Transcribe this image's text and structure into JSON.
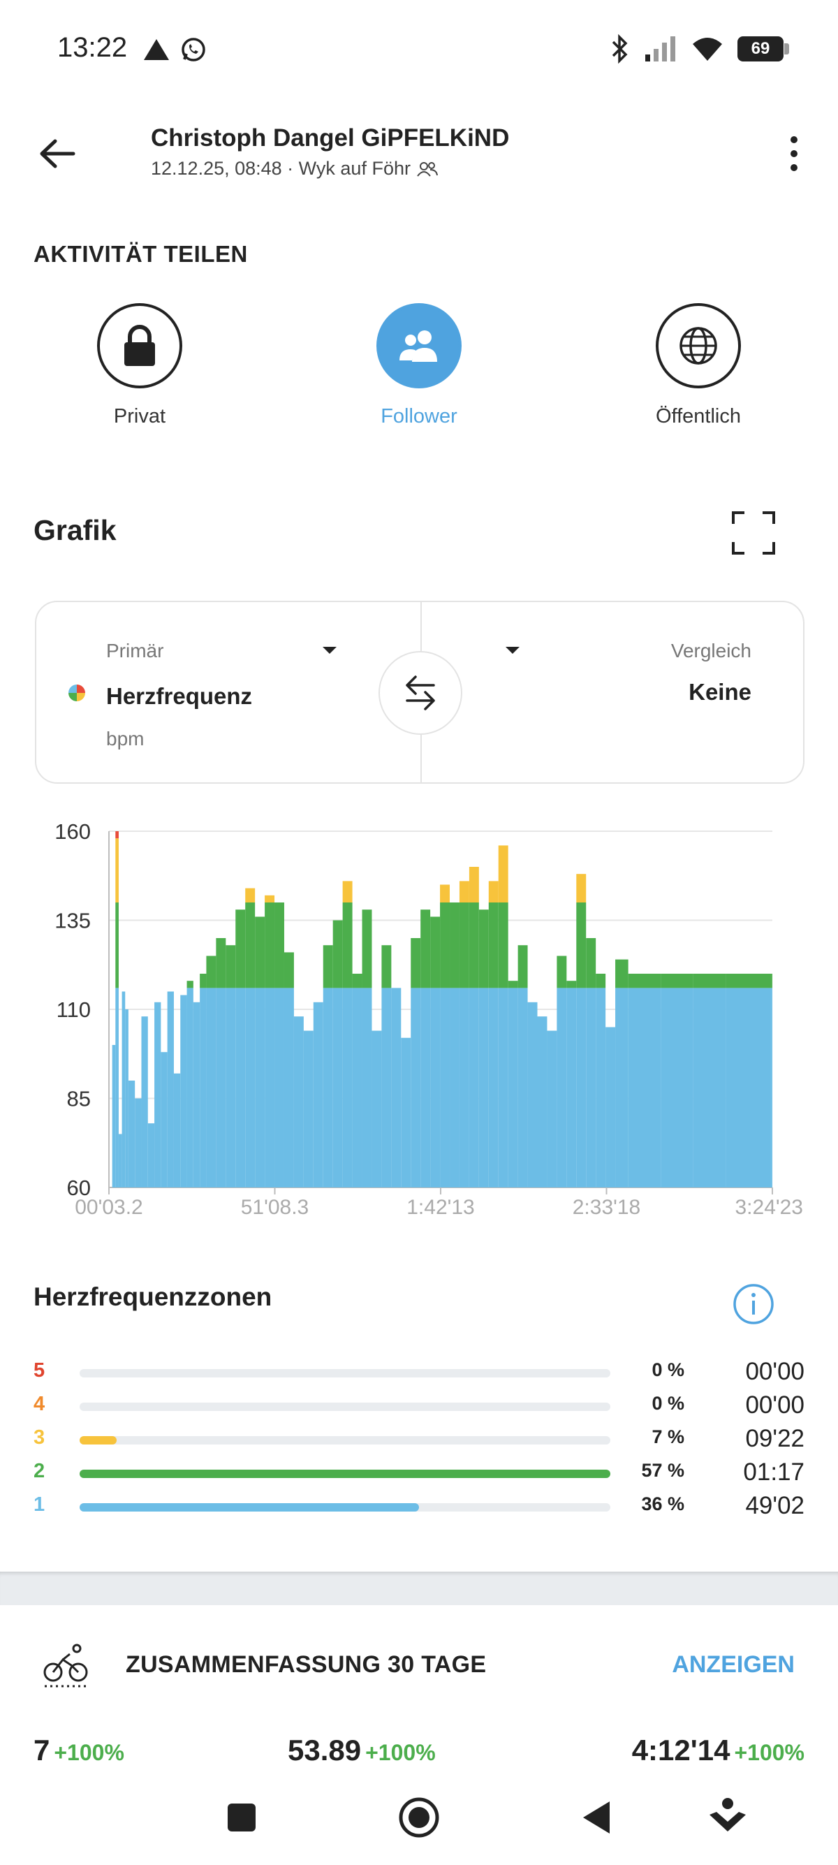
{
  "status_bar": {
    "time": "13:22",
    "battery": "69"
  },
  "header": {
    "title": "Christoph Dangel GiPFELKiND",
    "subtitle": "12.12.25, 08:48 · Wyk auf Föhr"
  },
  "share": {
    "heading": "AKTIVITÄT TEILEN",
    "options": [
      {
        "label": "Privat",
        "icon": "lock-icon",
        "selected": false
      },
      {
        "label": "Follower",
        "icon": "followers-icon",
        "selected": true
      },
      {
        "label": "Öffentlich",
        "icon": "globe-icon",
        "selected": false
      }
    ],
    "accent_color": "#4fa3df"
  },
  "graph": {
    "title": "Grafik",
    "primary": {
      "label": "Primär",
      "value": "Herzfrequenz",
      "unit": "bpm"
    },
    "compare": {
      "label": "Vergleich",
      "value": "Keine"
    }
  },
  "chart_data": {
    "type": "line",
    "ylim": [
      60,
      160
    ],
    "y_ticks": [
      "160",
      "135",
      "110",
      "85",
      "60"
    ],
    "x_ticks": [
      "00'03.2",
      "51'08.3",
      "1:42'13",
      "2:33'18",
      "3:24'23"
    ],
    "zone_colors": {
      "zone1": "#6cbde6",
      "zone2": "#4cae4c",
      "zone3": "#f7c33c",
      "zone5": "#e84b3a"
    },
    "zone_thresholds": [
      116,
      140
    ],
    "x_range_minutes": [
      0,
      204.4
    ],
    "series": [
      {
        "x": [
          0,
          1,
          2,
          3,
          4,
          5,
          6,
          8,
          10,
          12,
          14,
          16,
          18,
          20,
          22,
          24,
          26,
          28,
          30,
          33,
          36,
          39,
          42,
          45,
          48,
          51,
          54,
          57,
          60,
          63,
          66,
          69,
          72,
          75,
          78,
          81,
          84,
          87,
          90,
          93,
          96,
          99,
          102,
          105,
          108,
          111,
          114,
          117,
          120,
          123,
          126,
          129,
          132,
          135,
          138,
          141,
          144,
          147,
          150,
          153,
          156,
          160,
          170,
          180,
          190,
          204
        ],
        "y": [
          60,
          100,
          160,
          75,
          115,
          110,
          90,
          85,
          108,
          78,
          112,
          98,
          115,
          92,
          114,
          118,
          112,
          120,
          125,
          130,
          128,
          138,
          144,
          136,
          142,
          140,
          126,
          108,
          104,
          112,
          128,
          135,
          146,
          120,
          138,
          104,
          128,
          116,
          102,
          130,
          138,
          136,
          145,
          140,
          146,
          150,
          138,
          146,
          156,
          118,
          128,
          112,
          108,
          104,
          125,
          118,
          148,
          130,
          120,
          105,
          124,
          120,
          120,
          120,
          120,
          120
        ]
      }
    ]
  },
  "zones": {
    "title": "Herzfrequenzzonen",
    "items": [
      {
        "num": "5",
        "pct": "0 %",
        "time": "00'00",
        "fraction": 0.0,
        "color": "#e0442e"
      },
      {
        "num": "4",
        "pct": "0 %",
        "time": "00'00",
        "fraction": 0.0,
        "color": "#f08a2c"
      },
      {
        "num": "3",
        "pct": "7 %",
        "time": "09'22",
        "fraction": 0.07,
        "color": "#f7c33c"
      },
      {
        "num": "2",
        "pct": "57 %",
        "time": "01:17",
        "fraction": 1.0,
        "color": "#4cae4c"
      },
      {
        "num": "1",
        "pct": "36 %",
        "time": "49'02",
        "fraction": 0.64,
        "color": "#6cbde6"
      }
    ]
  },
  "summary": {
    "title": "ZUSAMMENFASSUNG 30 TAGE",
    "link": "ANZEIGEN",
    "stats": [
      {
        "value": "7",
        "change": "+100%"
      },
      {
        "value": "53.89",
        "change": "+100%"
      },
      {
        "value": "4:12'14",
        "change": "+100%"
      }
    ]
  }
}
